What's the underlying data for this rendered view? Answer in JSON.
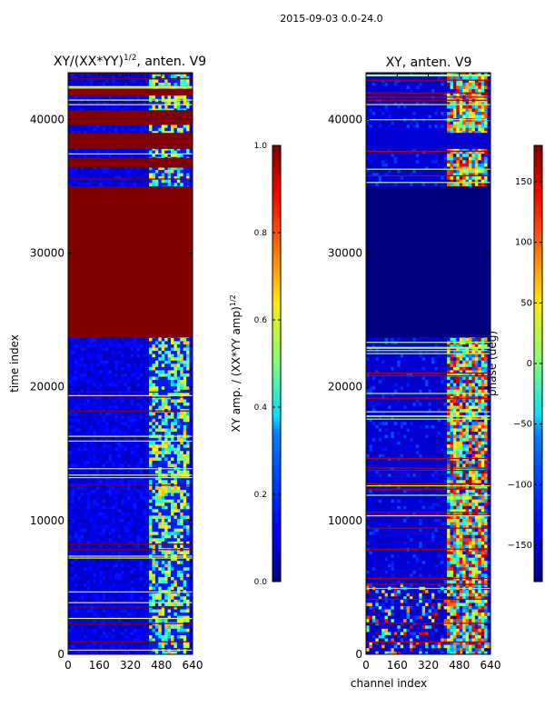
{
  "suptitle": "2015-09-03 0.0-24.0",
  "chart_data": [
    {
      "type": "heatmap",
      "title": "XY/(XX*YY)",
      "title_sup": "1/2",
      "title_suffix": ", anten. V9",
      "xlabel": "",
      "ylabel": "time index",
      "xlim": [
        0,
        640
      ],
      "ylim": [
        0,
        43500
      ],
      "xticks": [
        0,
        160,
        320,
        480,
        640
      ],
      "yticks": [
        0,
        10000,
        20000,
        30000,
        40000
      ],
      "colorbar": {
        "label": "XY amp. / (XX*YY amp)",
        "label_sup": "1/2",
        "range": [
          0.0,
          1.0
        ],
        "ticks": [
          0.0,
          0.2,
          0.4,
          0.6,
          0.8,
          1.0
        ],
        "tick_labels": [
          "0.0",
          "0.2",
          "0.4",
          "0.6",
          "0.8",
          "1.0"
        ],
        "colormap": "jet"
      },
      "bands": [
        {
          "t0": 23700,
          "t1": 35000,
          "value": 1.0
        },
        {
          "t0": 37800,
          "t1": 39000,
          "value": 1.0
        },
        {
          "t0": 39600,
          "t1": 40700,
          "value": 1.0
        },
        {
          "t0": 36400,
          "t1": 37100,
          "value": 1.0
        },
        {
          "t0": 41800,
          "t1": 42300,
          "value": 1.0
        }
      ]
    },
    {
      "type": "heatmap",
      "title": "XY, anten. V9",
      "xlabel": "channel index",
      "ylabel": "",
      "xlim": [
        0,
        640
      ],
      "ylim": [
        0,
        43500
      ],
      "xticks": [
        0,
        160,
        320,
        480,
        640
      ],
      "yticks": [
        0,
        10000,
        20000,
        30000,
        40000
      ],
      "colorbar": {
        "label": "phase (deg)",
        "range": [
          -180,
          180
        ],
        "ticks": [
          -150,
          -100,
          -50,
          0,
          50,
          100,
          150
        ],
        "tick_labels": [
          "−150",
          "−100",
          "−50",
          "0",
          "50",
          "100",
          "150"
        ],
        "colormap": "jet"
      },
      "bands": [
        {
          "t0": 23700,
          "t1": 35000,
          "value": -180
        },
        {
          "t0": 37800,
          "t1": 39000,
          "value": -150
        }
      ]
    }
  ]
}
